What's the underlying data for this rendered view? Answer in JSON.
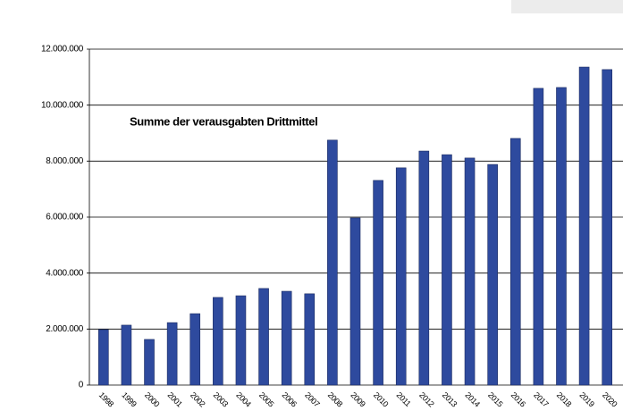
{
  "chart_data": {
    "type": "bar",
    "title": "Summe der verausgabten Drittmittel",
    "categories": [
      "1998",
      "1999",
      "2000",
      "2001",
      "2002",
      "2003",
      "2004",
      "2005",
      "2006",
      "2007",
      "2008",
      "2009",
      "2010",
      "2011",
      "2012",
      "2013",
      "2014",
      "2015",
      "2016",
      "2017",
      "2018",
      "2019",
      "2020"
    ],
    "values": [
      1980000,
      2140000,
      1630000,
      2230000,
      2550000,
      3130000,
      3190000,
      3450000,
      3350000,
      3260000,
      8750000,
      5970000,
      7310000,
      7760000,
      8360000,
      8230000,
      8110000,
      7880000,
      8810000,
      10600000,
      10630000,
      11360000,
      11270000
    ],
    "color": "#2e4a9e",
    "ylim": [
      0,
      12000000
    ],
    "yticks": [
      0,
      {
        "value": 2000000,
        "label": "2.000.000"
      },
      {
        "value": 4000000,
        "label": "4.000.000"
      },
      {
        "value": 6000000,
        "label": "6.000.000"
      },
      {
        "value": 8000000,
        "label": "8.000.000"
      },
      {
        "value": 10000000,
        "label": "10.000.000"
      },
      {
        "value": 12000000,
        "label": "12.000.000"
      }
    ],
    "grid": true
  }
}
